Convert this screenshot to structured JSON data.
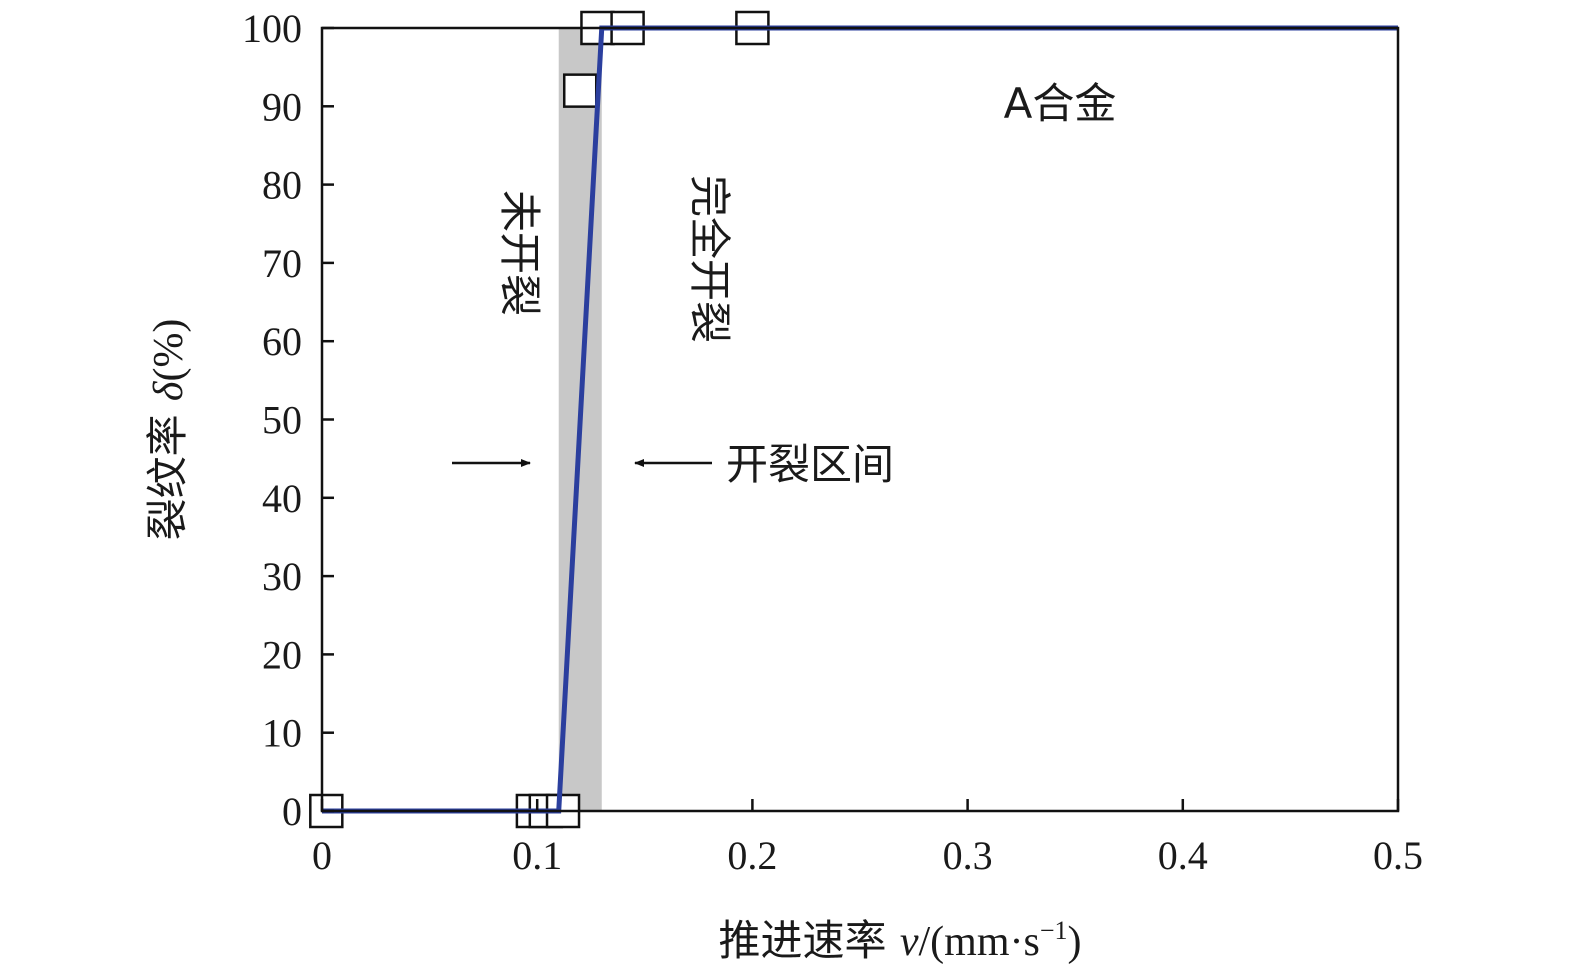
{
  "chart_data": {
    "type": "scatter",
    "title": "",
    "xlabel": {
      "prefix": "推进速率 ",
      "symbol": "v",
      "unit_open": "/(mm·s",
      "superscript": "−1",
      "unit_close": ")"
    },
    "ylabel": {
      "prefix": "裂纹率 ",
      "symbol": "δ",
      "unit": "(%)"
    },
    "xlim": [
      0,
      0.5
    ],
    "ylim": [
      0,
      100
    ],
    "xticks": [
      0,
      0.1,
      0.2,
      0.3,
      0.4,
      0.5
    ],
    "xtick_labels": [
      "0",
      "0.1",
      "0.2",
      "0.3",
      "0.4",
      "0.5"
    ],
    "yticks": [
      0,
      10,
      20,
      30,
      40,
      50,
      60,
      70,
      80,
      90,
      100
    ],
    "ytick_labels": [
      "0",
      "10",
      "20",
      "30",
      "40",
      "50",
      "60",
      "70",
      "80",
      "90",
      "100"
    ],
    "grid": false,
    "series": [
      {
        "kind": "markers",
        "marker": "open-square",
        "color": "#111111",
        "points": [
          {
            "x": 0.002,
            "y": 0
          },
          {
            "x": 0.098,
            "y": 0
          },
          {
            "x": 0.104,
            "y": 0
          },
          {
            "x": 0.112,
            "y": 0
          },
          {
            "x": 0.12,
            "y": 92
          },
          {
            "x": 0.128,
            "y": 100
          },
          {
            "x": 0.142,
            "y": 100
          },
          {
            "x": 0.2,
            "y": 100
          }
        ]
      },
      {
        "kind": "line",
        "color": "#2b3f9e",
        "points": [
          {
            "x": 0,
            "y": 0
          },
          {
            "x": 0.11,
            "y": 0
          },
          {
            "x": 0.13,
            "y": 100
          },
          {
            "x": 0.5,
            "y": 100
          }
        ]
      }
    ],
    "shaded_region": {
      "x_from": 0.11,
      "x_to": 0.13,
      "color": "#c8c8c8"
    },
    "annotations": {
      "alloy": "A合金",
      "uncracked": "未开裂",
      "fully_cracked": "完全开裂",
      "cracking_interval": "开裂区间"
    }
  }
}
